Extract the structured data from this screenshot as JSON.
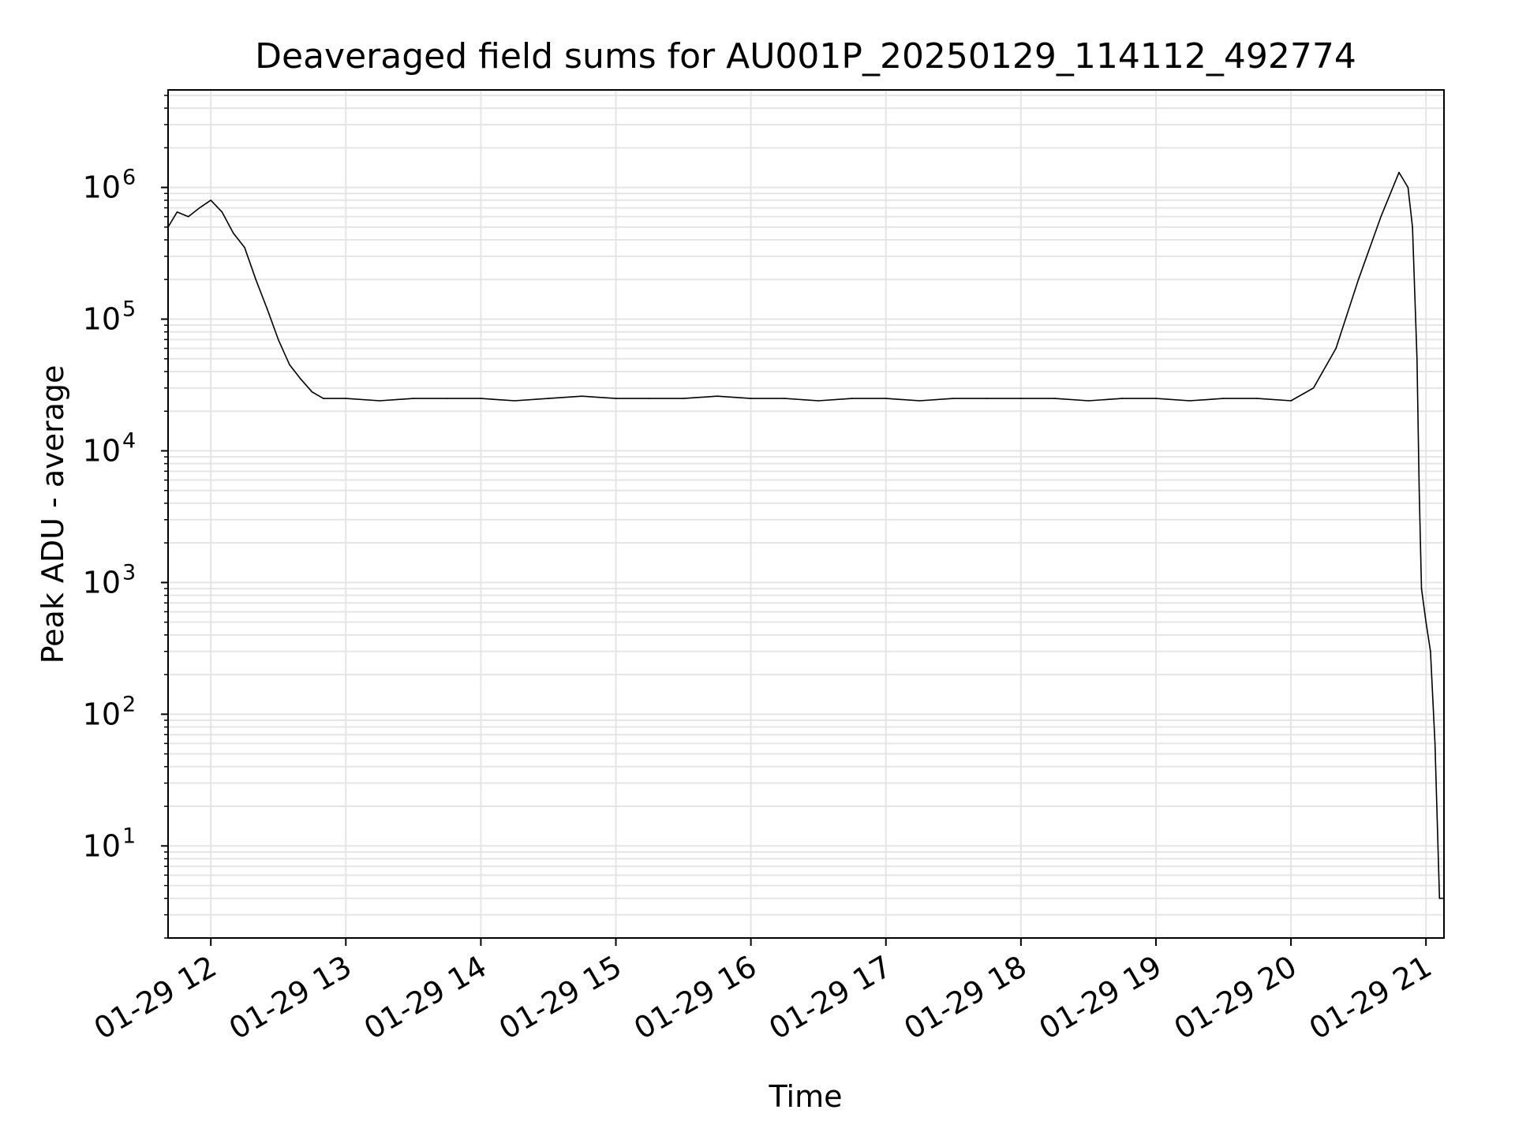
{
  "chart_data": {
    "type": "line",
    "title": "Deaveraged field sums for AU001P_20250129_114112_492774",
    "xlabel": "Time",
    "ylabel": "Peak ADU - average",
    "y_scale": "log",
    "grid": true,
    "line_color": "#000000",
    "xlim": [
      "2025-01-29 11:41",
      "2025-01-29 21:08"
    ],
    "ylim": [
      2,
      5500000
    ],
    "x_ticks": [
      "01-29 12",
      "01-29 13",
      "01-29 14",
      "01-29 15",
      "01-29 16",
      "01-29 17",
      "01-29 18",
      "01-29 19",
      "01-29 20",
      "01-29 21"
    ],
    "y_ticks": [
      {
        "base": "10",
        "exp": "1"
      },
      {
        "base": "10",
        "exp": "2"
      },
      {
        "base": "10",
        "exp": "3"
      },
      {
        "base": "10",
        "exp": "4"
      },
      {
        "base": "10",
        "exp": "5"
      },
      {
        "base": "10",
        "exp": "6"
      }
    ],
    "series": [
      {
        "x": [
          "2025-01-29 11:41",
          "2025-01-29 11:45",
          "2025-01-29 11:50",
          "2025-01-29 11:55",
          "2025-01-29 12:00",
          "2025-01-29 12:05",
          "2025-01-29 12:10",
          "2025-01-29 12:15",
          "2025-01-29 12:20",
          "2025-01-29 12:25",
          "2025-01-29 12:30",
          "2025-01-29 12:35",
          "2025-01-29 12:40",
          "2025-01-29 12:45",
          "2025-01-29 12:50",
          "2025-01-29 13:00",
          "2025-01-29 13:15",
          "2025-01-29 13:30",
          "2025-01-29 13:45",
          "2025-01-29 14:00",
          "2025-01-29 14:15",
          "2025-01-29 14:30",
          "2025-01-29 14:45",
          "2025-01-29 15:00",
          "2025-01-29 15:15",
          "2025-01-29 15:30",
          "2025-01-29 15:45",
          "2025-01-29 16:00",
          "2025-01-29 16:15",
          "2025-01-29 16:30",
          "2025-01-29 16:45",
          "2025-01-29 17:00",
          "2025-01-29 17:15",
          "2025-01-29 17:30",
          "2025-01-29 17:45",
          "2025-01-29 18:00",
          "2025-01-29 18:15",
          "2025-01-29 18:30",
          "2025-01-29 18:45",
          "2025-01-29 19:00",
          "2025-01-29 19:15",
          "2025-01-29 19:30",
          "2025-01-29 19:45",
          "2025-01-29 20:00",
          "2025-01-29 20:10",
          "2025-01-29 20:20",
          "2025-01-29 20:30",
          "2025-01-29 20:40",
          "2025-01-29 20:48",
          "2025-01-29 20:52",
          "2025-01-29 20:54",
          "2025-01-29 20:56",
          "2025-01-29 20:57",
          "2025-01-29 20:58",
          "2025-01-29 21:00",
          "2025-01-29 21:02",
          "2025-01-29 21:04",
          "2025-01-29 21:06",
          "2025-01-29 21:08"
        ],
        "y": [
          500000,
          650000,
          600000,
          700000,
          800000,
          650000,
          450000,
          350000,
          200000,
          120000,
          70000,
          45000,
          35000,
          28000,
          25000,
          25000,
          24000,
          25000,
          25000,
          25000,
          24000,
          25000,
          26000,
          25000,
          25000,
          25000,
          26000,
          25000,
          25000,
          24000,
          25000,
          25000,
          24000,
          25000,
          25000,
          25000,
          25000,
          24000,
          25000,
          25000,
          24000,
          25000,
          25000,
          24000,
          30000,
          60000,
          200000,
          600000,
          1300000,
          1000000,
          500000,
          50000,
          5000,
          900,
          500,
          300,
          60,
          4,
          4
        ]
      }
    ]
  }
}
